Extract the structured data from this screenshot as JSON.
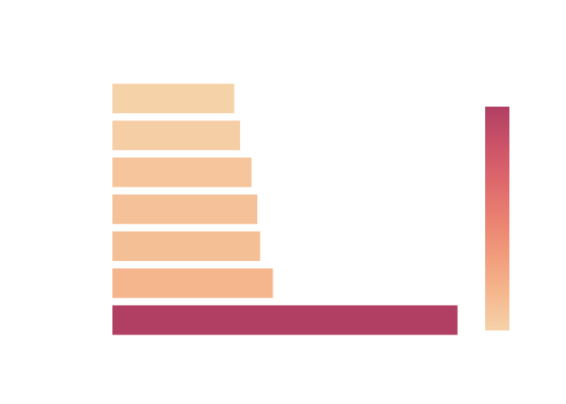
{
  "chart_data": {
    "type": "bar",
    "orientation": "horizontal",
    "title": "",
    "xlabel": "",
    "ylabel": "",
    "bars_top_to_bottom_values": [
      3.53,
      3.7,
      4.03,
      4.2,
      4.28,
      4.65,
      10.0
    ],
    "xlim": [
      0,
      10.8
    ],
    "grid": false,
    "legend": "none",
    "colorbar": {
      "present": true,
      "placement": "right",
      "colorscale": [
        "#f6d2a9",
        "#f5b78e",
        "#f19c7c",
        "#ea8171",
        "#dd686c",
        "#ca5268",
        "#b13f64"
      ]
    },
    "colors": {
      "background": "#ffffff",
      "scale_low": "#f6d2a9",
      "scale_high": "#b13f64"
    }
  }
}
